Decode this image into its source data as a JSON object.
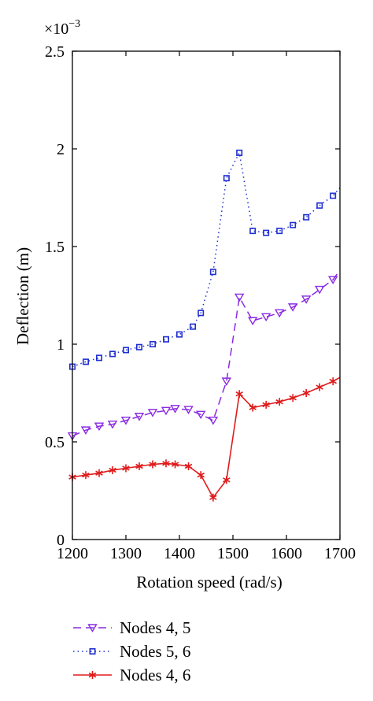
{
  "chart_data": {
    "type": "line",
    "xlabel": "Rotation speed (rad/s)",
    "ylabel": "Deflection (m)",
    "y_multiplier_label": "×10",
    "y_multiplier_exponent": "−3",
    "xlim": [
      1200,
      1700
    ],
    "ylim": [
      0,
      2.5
    ],
    "xticks": [
      "1200",
      "1300",
      "1400",
      "1500",
      "1600",
      "1700"
    ],
    "yticks": [
      "0",
      "0.5",
      "1",
      "1.5",
      "2",
      "2.5"
    ],
    "grid": false,
    "legend_position": "bottom",
    "x": [
      1200,
      1225,
      1250,
      1275,
      1300,
      1325,
      1350,
      1375,
      1400,
      1425,
      1440,
      1463,
      1488,
      1512,
      1537,
      1562,
      1587,
      1612,
      1637,
      1662,
      1687,
      1700
    ],
    "series": [
      {
        "name": "Nodes 4, 5",
        "color": "#8a2be2",
        "line_style": "dashed",
        "marker": "triangle-down",
        "x": [
          1200,
          1225,
          1250,
          1275,
          1300,
          1325,
          1350,
          1375,
          1392,
          1417,
          1440,
          1463,
          1488,
          1512,
          1537,
          1562,
          1587,
          1612,
          1637,
          1662,
          1687,
          1700
        ],
        "values": [
          0.53,
          0.56,
          0.58,
          0.59,
          0.61,
          0.63,
          0.65,
          0.66,
          0.67,
          0.665,
          0.64,
          0.61,
          0.81,
          1.24,
          1.12,
          1.14,
          1.16,
          1.19,
          1.23,
          1.28,
          1.33,
          1.38
        ]
      },
      {
        "name": "Nodes 5, 6",
        "color": "#1f2fd0",
        "line_style": "dotted",
        "marker": "square",
        "x": [
          1200,
          1225,
          1250,
          1275,
          1300,
          1325,
          1350,
          1375,
          1400,
          1425,
          1440,
          1463,
          1488,
          1512,
          1537,
          1562,
          1587,
          1612,
          1637,
          1662,
          1687,
          1700
        ],
        "values": [
          0.885,
          0.91,
          0.93,
          0.95,
          0.97,
          0.985,
          1.0,
          1.025,
          1.05,
          1.09,
          1.16,
          1.37,
          1.85,
          1.98,
          1.58,
          1.57,
          1.58,
          1.61,
          1.65,
          1.71,
          1.76,
          1.8
        ]
      },
      {
        "name": "Nodes 4, 6",
        "color": "#e01b1b",
        "line_style": "solid",
        "marker": "star",
        "x": [
          1200,
          1225,
          1250,
          1275,
          1300,
          1325,
          1350,
          1375,
          1392,
          1417,
          1440,
          1463,
          1488,
          1512,
          1537,
          1562,
          1587,
          1612,
          1637,
          1662,
          1687,
          1700
        ],
        "values": [
          0.32,
          0.33,
          0.34,
          0.355,
          0.365,
          0.375,
          0.385,
          0.39,
          0.385,
          0.375,
          0.33,
          0.215,
          0.305,
          0.745,
          0.675,
          0.69,
          0.705,
          0.725,
          0.75,
          0.78,
          0.81,
          0.83
        ]
      }
    ]
  }
}
